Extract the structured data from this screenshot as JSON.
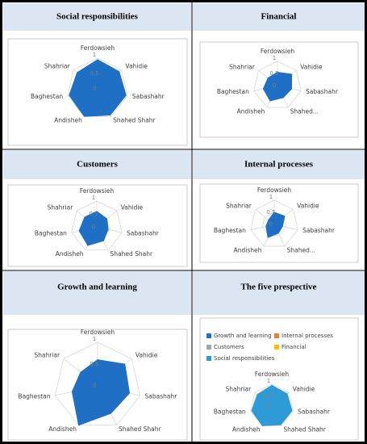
{
  "chart_data": [
    {
      "type": "radar",
      "title": "Social responsibilities",
      "categories": [
        "Ferdowsieh",
        "Vahidie",
        "Sabashahr",
        "Shahed Shahr",
        "Andisheh",
        "Baghestan",
        "Shahriar"
      ],
      "series": [
        {
          "color": "#1f6fc5",
          "values": [
            0.95,
            0.9,
            0.95,
            0.95,
            1,
            0.95,
            0.85
          ]
        }
      ],
      "ylim": [
        0,
        1
      ],
      "yticks": [
        0,
        0.5,
        1
      ],
      "grid": true
    },
    {
      "type": "radar",
      "title": "Financial",
      "categories": [
        "Ferdowsieh",
        "Vahidie",
        "Sabashahr",
        "Shahed...",
        "Andisheh",
        "Baghestan",
        "Shahriar"
      ],
      "series": [
        {
          "color": "#1f6fc5",
          "values": [
            0.55,
            0.75,
            0.6,
            0.55,
            0.7,
            0.6,
            0.5
          ]
        }
      ],
      "ylim": [
        0,
        1
      ],
      "yticks": [
        0,
        0.5,
        1
      ],
      "grid": true
    },
    {
      "type": "radar",
      "title": "Customers",
      "categories": [
        "Ferdowsieh",
        "Vahidie",
        "Sabashahr",
        "Shahed Shahr",
        "Andisheh",
        "Baghestan",
        "Shahriar"
      ],
      "series": [
        {
          "color": "#1f6fc5",
          "values": [
            0.6,
            0.5,
            0.45,
            0.6,
            0.8,
            0.7,
            0.6
          ]
        }
      ],
      "ylim": [
        0,
        1
      ],
      "yticks": [
        0,
        0.5,
        1
      ],
      "grid": true
    },
    {
      "type": "radar",
      "title": "Internal processes",
      "categories": [
        "Ferdowsieh",
        "Vahidie",
        "Sabashahr",
        "Shahed...",
        "Andisheh",
        "Baghestan",
        "Shahriar"
      ],
      "series": [
        {
          "color": "#1f6fc5",
          "values": [
            0.5,
            0.55,
            0.35,
            0.4,
            0.6,
            0.35,
            0.3
          ]
        }
      ],
      "ylim": [
        0,
        1
      ],
      "yticks": [
        0,
        0.5,
        1
      ],
      "grid": true
    },
    {
      "type": "radar",
      "title": "Growth and learning",
      "categories": [
        "Ferdowsieh",
        "Vahidie",
        "Sabashahr",
        "Shahed Shahr",
        "Andisheh",
        "Baghestan",
        "Shahriar"
      ],
      "series": [
        {
          "color": "#1f6fc5",
          "values": [
            0.6,
            0.8,
            0.75,
            0.7,
            1,
            0.6,
            0.5
          ]
        }
      ],
      "ylim": [
        0,
        1
      ],
      "yticks": [
        0,
        0.5,
        1
      ],
      "grid": true
    },
    {
      "type": "radar",
      "title": "The five prespective",
      "categories": [
        "Ferdowsieh",
        "Vahidie",
        "Sabashahr",
        "Shahed Shahr",
        "Andisheh",
        "Baghestan",
        "Shahriar"
      ],
      "series": [
        {
          "name": "Growth and learning",
          "color": "#1f6fc5",
          "values": [
            0.6,
            0.8,
            0.75,
            0.7,
            1,
            0.6,
            0.5
          ]
        },
        {
          "name": "Internal processes",
          "color": "#ed7d31",
          "values": [
            0.5,
            0.55,
            0.35,
            0.4,
            0.6,
            0.35,
            0.3
          ]
        },
        {
          "name": "Customers",
          "color": "#a5a5a5",
          "values": [
            0.6,
            0.5,
            0.45,
            0.6,
            0.8,
            0.7,
            0.6
          ]
        },
        {
          "name": "Financial",
          "color": "#ffc000",
          "values": [
            0.55,
            0.75,
            0.6,
            0.55,
            0.7,
            0.6,
            0.5
          ]
        },
        {
          "name": "Social responsibilities",
          "color": "#2e9bd6",
          "values": [
            0.95,
            0.9,
            0.95,
            0.95,
            1,
            0.95,
            0.85
          ]
        }
      ],
      "ylim": [
        0,
        1
      ],
      "yticks": [
        0,
        0.5,
        1
      ],
      "grid": true,
      "legend": "top"
    }
  ]
}
